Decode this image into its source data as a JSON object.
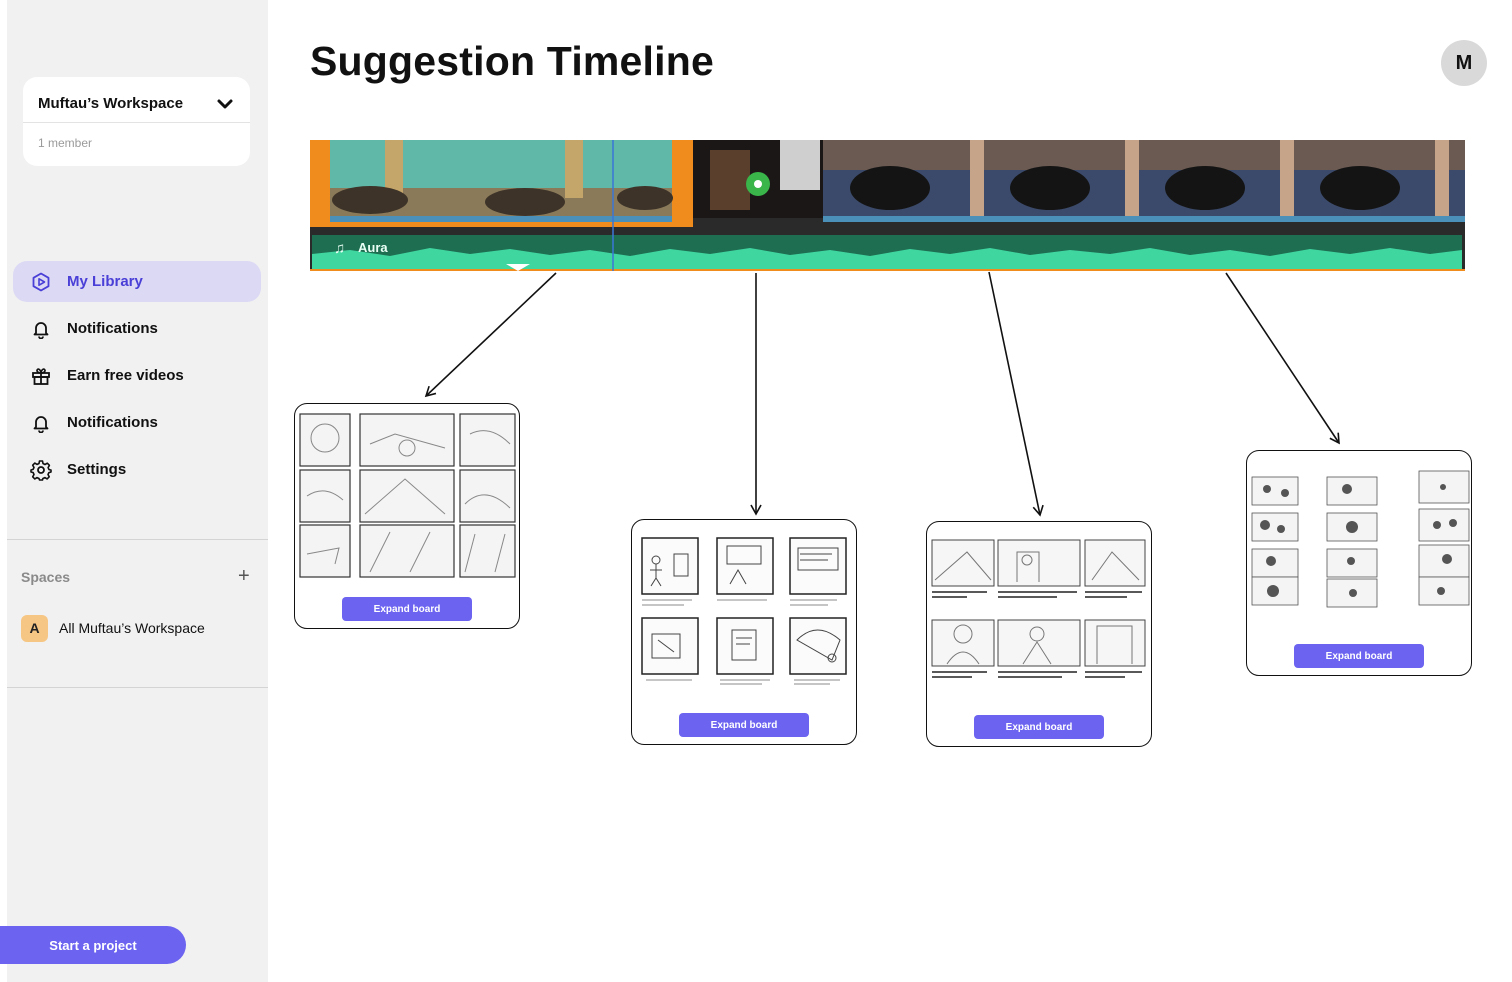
{
  "sidebar": {
    "workspace": {
      "name": "Muftau’s Workspace",
      "members": "1 member"
    },
    "nav": [
      {
        "label": "My Library",
        "icon": "library-icon",
        "active": true
      },
      {
        "label": "Notifications",
        "icon": "bell-icon"
      },
      {
        "label": "Earn free videos",
        "icon": "gift-icon"
      },
      {
        "label": "Notifications",
        "icon": "bell-icon"
      },
      {
        "label": "Settings",
        "icon": "gear-icon"
      }
    ],
    "spaces": {
      "title": "Spaces",
      "add": "+",
      "items": [
        {
          "avatar": "A",
          "label": "All Muftau’s Workspace"
        }
      ]
    },
    "start_button": "Start a project"
  },
  "header": {
    "title": "Suggestion Timeline",
    "avatar": "M"
  },
  "timeline": {
    "audio_track": "Aura"
  },
  "boards": [
    {
      "button": "Expand board"
    },
    {
      "button": "Expand board"
    },
    {
      "button": "Expand board"
    },
    {
      "button": "Expand board"
    }
  ],
  "colors": {
    "accent": "#6c63f0",
    "active_nav_bg": "#dcd9f5",
    "active_nav_text": "#4a3fd6",
    "audio_wave": "#3fd6a0",
    "clip_orange": "#f08c1e"
  }
}
